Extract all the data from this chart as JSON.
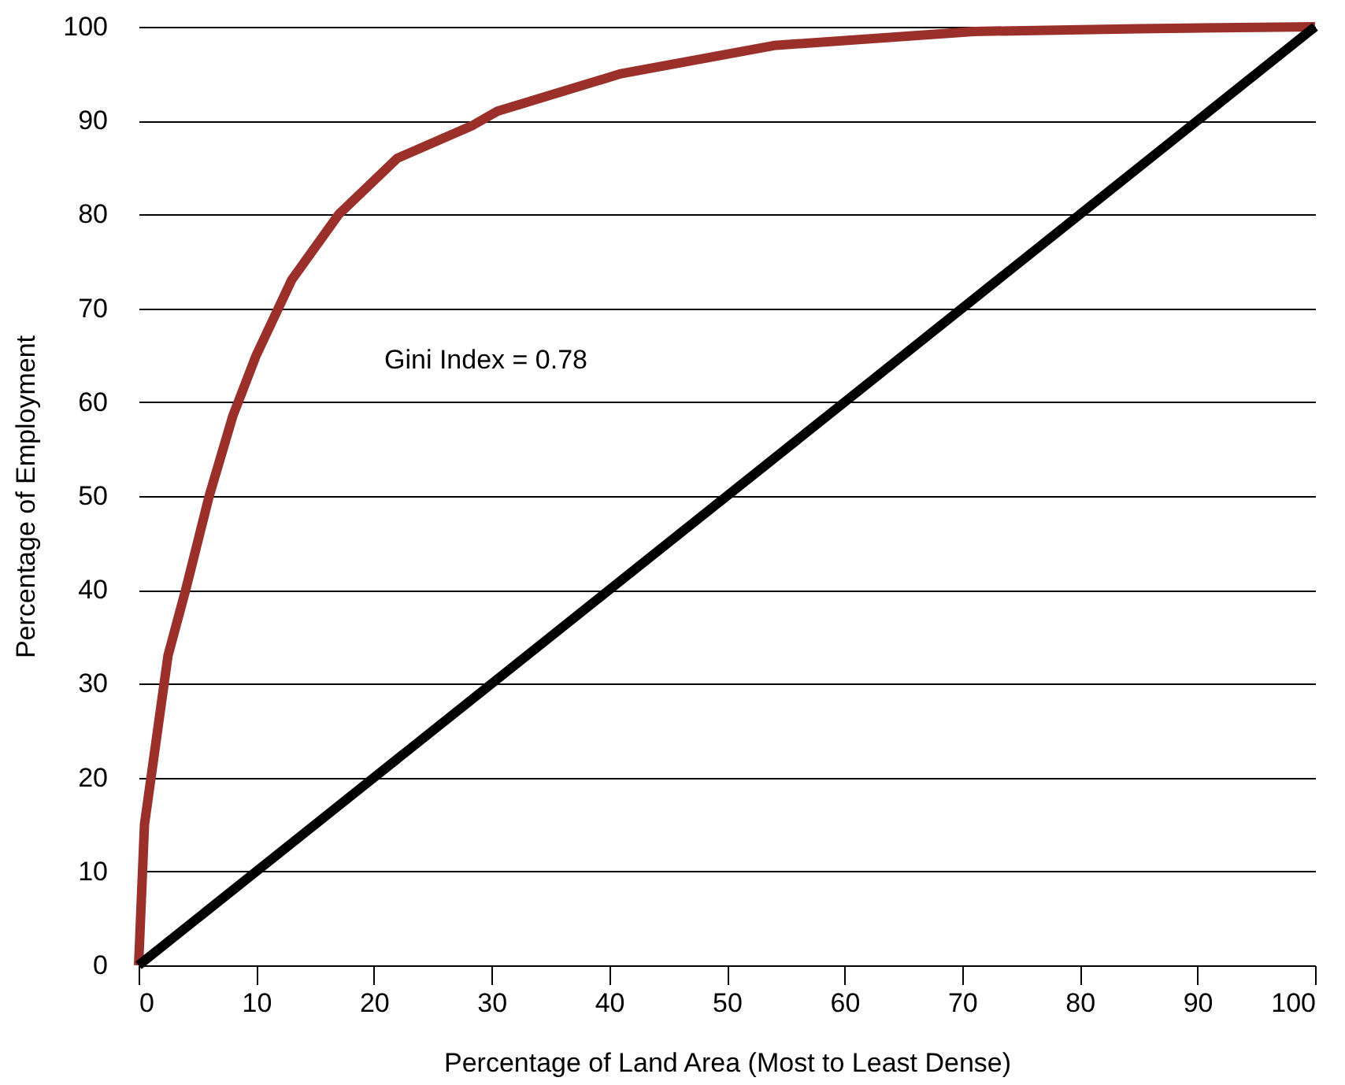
{
  "chart_data": {
    "type": "line",
    "xlabel": "Percentage of Land Area (Most to Least Dense)",
    "ylabel": "Percentage of Employment",
    "annotations": [
      "Gini Index = 0.78"
    ],
    "series": [
      {
        "color": "#9a3029",
        "x": [
          0,
          0.5,
          1.5,
          2.5,
          4,
          6,
          8,
          10,
          13,
          17,
          22,
          28.4,
          30.5,
          41,
          54,
          71,
          85,
          100
        ],
        "values": [
          0,
          15,
          24,
          33,
          40,
          50,
          58.5,
          65,
          73,
          80,
          86,
          89.5,
          91,
          95,
          98,
          99.5,
          99.8,
          100
        ]
      },
      {
        "color": "#000000",
        "x": [
          0,
          100
        ],
        "values": [
          0,
          100
        ]
      }
    ],
    "xlim": [
      0,
      100
    ],
    "ylim": [
      0,
      100
    ],
    "xticks": [
      0,
      10,
      20,
      30,
      40,
      50,
      60,
      70,
      80,
      90,
      100
    ],
    "yticks": [
      0,
      10,
      20,
      30,
      40,
      50,
      60,
      70,
      80,
      90,
      100
    ],
    "grid": "y",
    "marker": "none",
    "line_style": "solid"
  }
}
